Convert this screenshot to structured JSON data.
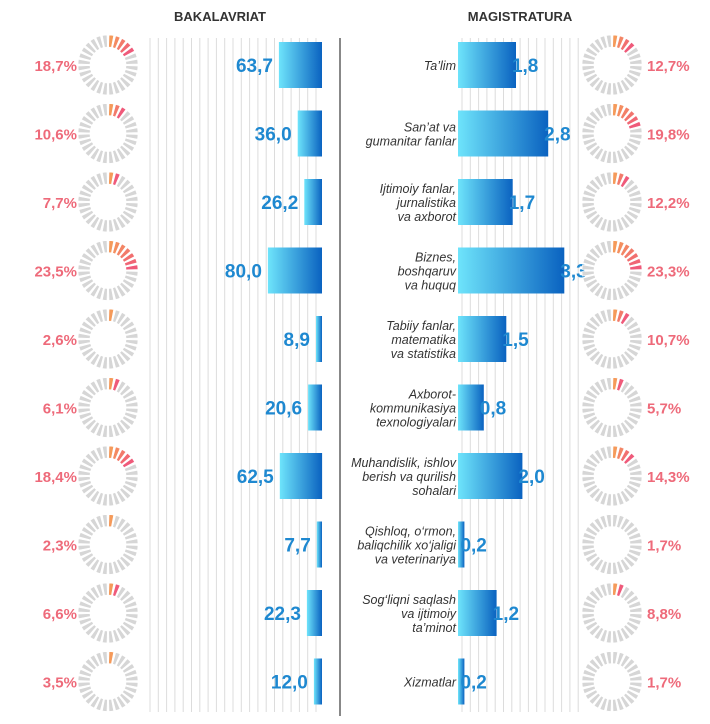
{
  "headers": {
    "left": "BAKALAVRIAT",
    "right": "MAGISTRATURA"
  },
  "colors": {
    "pct_text": "#ee6a7a",
    "value_text": "#1e88d0",
    "cat_text": "#333333",
    "donut_gray": "#d6d6d6",
    "donut_warm_start": "#f59a5a",
    "donut_warm_end": "#ef5a7a",
    "bar_light": "#6ee4fb",
    "bar_dark": "#0a62c0",
    "grid": "#dcdcdc",
    "divider": "#888888"
  },
  "chart_data": [
    {
      "type": "bar",
      "title": "BAKALAVRIAT",
      "categories": [
        "Ta'lim",
        "San'at va gumanitar fanlar",
        "Ijtimoiy fanlar, jurnalistika va axborot",
        "Biznes, boshqaruv va huquq",
        "Tabiiy fanlar, matematika va statistika",
        "Axborot-kommunikasiya texnologiyalari",
        "Muhandislik, ishlov berish va qurilish sohalari",
        "Qishloq, o'rmon, baliqchilik xo'jaligi va veterinariya",
        "Sog'liqni saqlash va ijtimoiy ta'minot",
        "Xizmatlar"
      ],
      "values": [
        63.7,
        36.0,
        26.2,
        80.0,
        8.9,
        20.6,
        62.5,
        7.7,
        22.3,
        12.0
      ],
      "value_labels": [
        "63,7",
        "36,0",
        "26,2",
        "80,0",
        "8,9",
        "20,6",
        "62,5",
        "7,7",
        "22,3",
        "12,0"
      ],
      "share_values": [
        18.7,
        10.6,
        7.7,
        23.5,
        2.6,
        6.1,
        18.4,
        2.3,
        6.6,
        3.5
      ],
      "share_labels": [
        "18,7%",
        "10,6%",
        "7,7%",
        "23,5%",
        "2,6%",
        "6,1%",
        "18,4%",
        "2,3%",
        "6,6%",
        "3,5%"
      ],
      "direction": "right-to-left"
    },
    {
      "type": "bar",
      "title": "MAGISTRATURA",
      "categories": [
        "Ta'lim",
        "San'at va gumanitar fanlar",
        "Ijtimoiy fanlar, jurnalistika va axborot",
        "Biznes, boshqaruv va huquq",
        "Tabiiy fanlar, matematika va statistika",
        "Axborot-kommunikasiya texnologiyalari",
        "Muhandislik, ishlov berish va qurilish sohalari",
        "Qishloq, o'rmon, baliqchilik xo'jaligi va veterinariya",
        "Sog'liqni saqlash va ijtimoiy ta'minot",
        "Xizmatlar"
      ],
      "values": [
        1.8,
        2.8,
        1.7,
        3.3,
        1.5,
        0.8,
        2.0,
        0.2,
        1.2,
        0.2
      ],
      "value_labels": [
        "1,8",
        "2,8",
        "1,7",
        "3,3",
        "1,5",
        "0,8",
        "2,0",
        "0,2",
        "1,2",
        "0,2"
      ],
      "share_values": [
        12.7,
        19.8,
        12.2,
        23.3,
        10.7,
        5.7,
        14.3,
        1.7,
        8.8,
        1.7
      ],
      "share_labels": [
        "12,7%",
        "19,8%",
        "12,2%",
        "23,3%",
        "10,7%",
        "5,7%",
        "14,3%",
        "1,7%",
        "8,8%",
        "1,7%"
      ],
      "direction": "left-to-right"
    }
  ],
  "category_lines": [
    [
      "Ta’lim"
    ],
    [
      "San’at va",
      "gumanitar fanlar"
    ],
    [
      "Ijtimoiy fanlar,",
      "jurnalistika",
      "va axborot"
    ],
    [
      "Biznes,",
      "boshqaruv",
      "va huquq"
    ],
    [
      "Tabiiy fanlar,",
      "matematika",
      "va statistika"
    ],
    [
      "Axborot-",
      "kommunikasiya",
      "texnologiyalari"
    ],
    [
      "Muhandislik, ishlov",
      "berish va qurilish",
      "sohalari"
    ],
    [
      "Qishloq, o‘rmon,",
      "baliqchilik xo‘jaligi",
      "va veterinariya"
    ],
    [
      "Sog‘liqni saqlash",
      "va ijtimoiy",
      "ta’minot"
    ],
    [
      "Xizmatlar"
    ]
  ]
}
